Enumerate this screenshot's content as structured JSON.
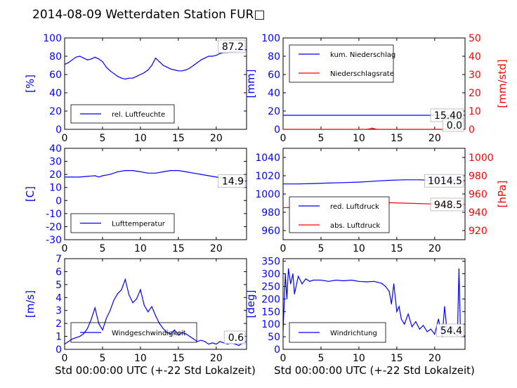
{
  "title": "2014-08-09 Wetterdaten Station FUR□",
  "xlabel": "Std 00:00:00 UTC (+-22 Std Lokalzeit)",
  "colors": {
    "primary": "#0000ff",
    "secondary": "#ff0000",
    "wind_light": "#8080ff"
  },
  "chart_data": [
    {
      "type": "line",
      "xlim": [
        0,
        24
      ],
      "xticks": [
        0,
        5,
        10,
        15,
        20
      ],
      "ylim": [
        0,
        100
      ],
      "yticks": [
        0,
        20,
        40,
        60,
        80,
        100
      ],
      "ylabel": "[%]",
      "last_value": "87.2",
      "legend": {
        "entries": [
          "rel. Luftfeuchte"
        ],
        "placement": "lower-left"
      },
      "series": [
        {
          "name": "rel. Luftfeuchte",
          "color": "#0000ff",
          "x": [
            0,
            0.5,
            1,
            1.5,
            2,
            2.5,
            3,
            3.5,
            4,
            4.5,
            5,
            5.5,
            6,
            6.5,
            7,
            7.5,
            8,
            8.5,
            9,
            9.5,
            10,
            10.5,
            11,
            11.5,
            12,
            12.5,
            13,
            13.5,
            14,
            14.5,
            15,
            15.5,
            16,
            16.5,
            17,
            17.5,
            18,
            18.5,
            19,
            19.5,
            20,
            20.5,
            21,
            21.5,
            22,
            22.5,
            23,
            23.5,
            24
          ],
          "y": [
            71,
            73,
            76,
            79,
            80,
            78,
            76,
            77,
            79,
            77,
            74,
            68,
            64,
            61,
            58,
            56,
            55,
            56,
            56,
            58,
            60,
            62,
            65,
            70,
            78,
            74,
            70,
            68,
            66,
            65,
            64,
            64,
            65,
            67,
            70,
            73,
            76,
            78,
            80,
            80,
            81,
            83,
            84,
            84,
            85,
            85,
            86,
            87,
            87.2
          ]
        }
      ]
    },
    {
      "type": "line",
      "xlim": [
        0,
        24
      ],
      "xticks": [
        0,
        5,
        10,
        15,
        20
      ],
      "ylim": [
        0,
        100
      ],
      "yticks": [
        0,
        20,
        40,
        60,
        80,
        100
      ],
      "ylabel": "[mm]",
      "ylim2": [
        0,
        50
      ],
      "yticks2": [
        0,
        10,
        20,
        30,
        40,
        50
      ],
      "ylabel2": "[mm/std]",
      "last_value": "15.40",
      "last_value2": "0.0",
      "legend": {
        "entries": [
          "kum. Niederschlag",
          "Niederschlagsrate"
        ],
        "placement": "upper-left"
      },
      "series": [
        {
          "name": "kum. Niederschlag",
          "color": "#0000ff",
          "axis": "left",
          "x": [
            0,
            24
          ],
          "y": [
            15.4,
            15.4
          ]
        },
        {
          "name": "Niederschlagsrate",
          "color": "#ff0000",
          "axis": "right",
          "x": [
            0,
            11,
            11.5,
            11.7,
            12,
            12.3,
            24
          ],
          "y": [
            0,
            0,
            0.3,
            0.7,
            0.4,
            0,
            0
          ]
        }
      ]
    },
    {
      "type": "line",
      "xlim": [
        0,
        24
      ],
      "xticks": [
        0,
        5,
        10,
        15,
        20
      ],
      "ylim": [
        -30,
        40
      ],
      "yticks": [
        -30,
        -20,
        -10,
        0,
        10,
        20,
        30,
        40
      ],
      "ylabel": "[C]",
      "last_value": "14.9",
      "legend": {
        "entries": [
          "Lufttemperatur"
        ],
        "placement": "lower-left"
      },
      "series": [
        {
          "name": "Lufttemperatur",
          "color": "#0000ff",
          "x": [
            0,
            1,
            2,
            3,
            4,
            4.5,
            5,
            6,
            7,
            8,
            9,
            10,
            11,
            12,
            13,
            14,
            15,
            16,
            17,
            18,
            19,
            20,
            21,
            22,
            23,
            24
          ],
          "y": [
            18,
            18,
            18,
            18.5,
            19,
            18,
            19,
            20,
            22,
            23,
            23,
            22,
            21,
            21,
            22,
            23,
            23,
            22,
            21,
            20,
            19,
            18,
            17,
            16,
            15.5,
            14.9
          ]
        }
      ]
    },
    {
      "type": "line",
      "xlim": [
        0,
        24
      ],
      "xticks": [
        0,
        5,
        10,
        15,
        20
      ],
      "ylim": [
        950,
        1050
      ],
      "yticks": [
        960,
        980,
        1000,
        1020,
        1040
      ],
      "ylim2": [
        910,
        1010
      ],
      "yticks2": [
        920,
        940,
        960,
        980,
        1000
      ],
      "ylabel2": "[hPa]",
      "last_value": "1014.5",
      "last_value2": "948.5",
      "legend": {
        "entries": [
          "red. Luftdruck",
          "abs. Luftdruck"
        ],
        "placement": "lower-left"
      },
      "series": [
        {
          "name": "red. Luftdruck",
          "color": "#0000ff",
          "axis": "left",
          "x": [
            0,
            2,
            4,
            6,
            8,
            10,
            12,
            14,
            16,
            18,
            20,
            22,
            24
          ],
          "y": [
            1011,
            1011,
            1011.5,
            1012,
            1012.5,
            1013,
            1014,
            1015,
            1015.5,
            1015.5,
            1015,
            1014.8,
            1014.5
          ]
        },
        {
          "name": "abs. Luftdruck",
          "color": "#ff0000",
          "axis": "right",
          "x": [
            0,
            2,
            4,
            6,
            8,
            10,
            12,
            14,
            16,
            18,
            20,
            22,
            24
          ],
          "y": [
            945,
            945.5,
            946,
            947,
            948,
            949,
            950,
            950.5,
            950,
            949.5,
            949,
            948.8,
            948.5
          ]
        }
      ]
    },
    {
      "type": "line",
      "xlim": [
        0,
        24
      ],
      "xticks": [
        0,
        5,
        10,
        15,
        20
      ],
      "ylim": [
        0,
        7
      ],
      "yticks": [
        0,
        1,
        2,
        3,
        4,
        5,
        6,
        7
      ],
      "ylabel": "[m/s]",
      "last_value": "0.6",
      "legend": {
        "entries": [
          "Windgeschwindigkeit"
        ],
        "placement": "lower-left"
      },
      "series": [
        {
          "name": "Windgeschwindigkeit",
          "color": "#0000ff",
          "x": [
            0,
            0.5,
            1,
            1.5,
            2,
            2.5,
            3,
            3.5,
            4,
            4.5,
            5,
            5.5,
            6,
            6.5,
            7,
            7.5,
            8,
            8.5,
            9,
            9.5,
            10,
            10.5,
            11,
            11.5,
            12,
            12.5,
            13,
            13.5,
            14,
            14.5,
            15,
            15.5,
            16,
            16.5,
            17,
            17.5,
            18,
            18.5,
            19,
            19.5,
            20,
            20.5,
            21,
            21.5,
            22,
            22.5,
            23,
            23.5,
            24
          ],
          "y": [
            0.4,
            0.6,
            0.8,
            0.9,
            1.0,
            1.2,
            1.6,
            2.3,
            3.2,
            2.0,
            1.5,
            2.4,
            3.0,
            3.8,
            4.3,
            4.6,
            5.4,
            4.2,
            3.6,
            3.9,
            4.6,
            3.4,
            2.9,
            3.3,
            2.6,
            2.0,
            1.6,
            1.3,
            1.2,
            1.5,
            1.1,
            1.3,
            1.2,
            1.0,
            0.8,
            0.6,
            0.7,
            0.6,
            0.4,
            0.5,
            0.4,
            0.6,
            0.5,
            0.4,
            0.5,
            0.4,
            0.3,
            0.5,
            0.6
          ]
        }
      ]
    },
    {
      "type": "line",
      "xlim": [
        0,
        24
      ],
      "xticks": [
        0,
        5,
        10,
        15,
        20
      ],
      "ylim": [
        0,
        360
      ],
      "yticks": [
        0,
        50,
        100,
        150,
        200,
        250,
        300,
        350
      ],
      "ylabel": "[deg]",
      "last_value": "54.4",
      "legend": {
        "entries": [
          "Windrichtung"
        ],
        "placement": "lower-left"
      },
      "series": [
        {
          "name": "Windrichtung",
          "color": "#0000ff",
          "x": [
            0,
            0.3,
            0.5,
            0.7,
            1,
            1.3,
            1.5,
            2,
            2.5,
            3,
            3.5,
            4,
            5,
            6,
            7,
            8,
            9,
            10,
            11,
            12,
            13,
            13.5,
            14,
            14.3,
            14.6,
            15,
            15.3,
            15.6,
            16,
            16.5,
            17,
            17.5,
            18,
            18.5,
            19,
            19.5,
            20,
            20.5,
            21,
            21.3,
            21.6,
            22,
            22.3,
            22.6,
            23,
            23.2,
            23.4,
            23.6,
            24
          ],
          "y": [
            70,
            300,
            200,
            320,
            260,
            300,
            220,
            290,
            260,
            280,
            270,
            275,
            275,
            270,
            275,
            272,
            275,
            270,
            268,
            270,
            262,
            250,
            230,
            180,
            260,
            150,
            170,
            120,
            100,
            140,
            90,
            110,
            80,
            95,
            70,
            80,
            60,
            120,
            50,
            170,
            80,
            60,
            90,
            60,
            55,
            320,
            70,
            50,
            54.4
          ]
        }
      ]
    }
  ]
}
